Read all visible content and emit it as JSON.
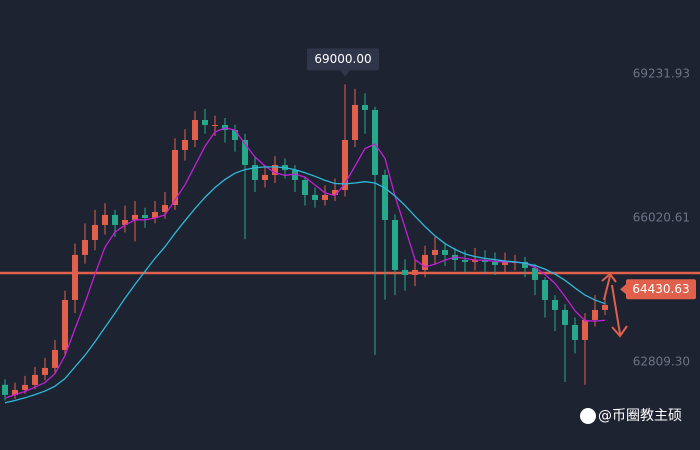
{
  "chart_data": {
    "type": "candlestick",
    "up_color": "#e0604c",
    "down_color": "#26a88a",
    "open": [
      62300,
      62074,
      62185,
      62297,
      62520,
      62676,
      63077,
      64192,
      65196,
      65530,
      65865,
      66088,
      65865,
      65976,
      66088,
      66020,
      66154,
      66310,
      67537,
      67760,
      68206,
      68095,
      68095,
      67983,
      67760,
      67202,
      66868,
      66980,
      67202,
      67091,
      66868,
      66534,
      66422,
      66534,
      66645,
      67760,
      68541,
      68429,
      66980,
      65976,
      64861,
      64750,
      64861,
      65196,
      65307,
      65196,
      65084,
      65040,
      65084,
      65040,
      64973,
      65040,
      65040,
      64906,
      64638,
      64192,
      63969,
      63635,
      63300,
      63746,
      63969
    ],
    "high": [
      62420,
      62350,
      62500,
      62700,
      62900,
      63300,
      64400,
      65450,
      65900,
      66200,
      66350,
      66200,
      66300,
      66400,
      66250,
      66400,
      66600,
      67800,
      68000,
      68400,
      68450,
      68300,
      68250,
      68100,
      67900,
      67400,
      67200,
      67400,
      67350,
      67200,
      66950,
      66700,
      66750,
      66900,
      69000,
      68900,
      68800,
      68500,
      67100,
      66100,
      65100,
      65100,
      65400,
      65600,
      65450,
      65350,
      65300,
      65350,
      65300,
      65250,
      65250,
      65200,
      65150,
      65000,
      64700,
      64300,
      64100,
      63800,
      63900,
      64300,
      64350
    ],
    "low": [
      61950,
      61980,
      62100,
      62200,
      62400,
      62550,
      62950,
      63900,
      65000,
      65300,
      65650,
      65600,
      65700,
      65500,
      65800,
      65900,
      66000,
      66200,
      67300,
      67600,
      67900,
      67850,
      67700,
      67500,
      65550,
      66600,
      66700,
      66800,
      66900,
      66600,
      66300,
      66250,
      66300,
      66400,
      66500,
      67600,
      67900,
      62966,
      64200,
      64300,
      64400,
      64500,
      64700,
      65000,
      64950,
      64850,
      64800,
      64850,
      64800,
      64750,
      64800,
      64850,
      64700,
      64300,
      63800,
      63500,
      62363,
      63000,
      62300,
      63600,
      63850
    ],
    "close": [
      62074,
      62185,
      62297,
      62520,
      62676,
      63077,
      64192,
      65196,
      65530,
      65865,
      66088,
      65865,
      65976,
      66088,
      66020,
      66154,
      66310,
      67537,
      67760,
      68206,
      68095,
      68095,
      67983,
      67760,
      67202,
      66868,
      66980,
      67202,
      67091,
      66868,
      66534,
      66422,
      66534,
      66645,
      67760,
      68541,
      68429,
      66980,
      65976,
      64861,
      64750,
      64861,
      65196,
      65307,
      65196,
      65084,
      65040,
      65084,
      65040,
      64973,
      65040,
      65040,
      64906,
      64638,
      64192,
      63969,
      63635,
      63300,
      63746,
      63969,
      64081
    ],
    "lines": [
      {
        "color": "#c21fd6",
        "values": [
          62000,
          62080,
          62150,
          62250,
          62350,
          62550,
          62950,
          63550,
          64130,
          64770,
          65370,
          65710,
          65860,
          65980,
          65980,
          66020,
          66090,
          66420,
          66760,
          67190,
          67620,
          67940,
          68030,
          67980,
          67670,
          67380,
          67180,
          67030,
          66970,
          67000,
          66930,
          66760,
          66580,
          66520,
          66790,
          67180,
          67570,
          67670,
          67350,
          66510,
          65810,
          65090,
          64930,
          64990,
          65080,
          65150,
          65120,
          65080,
          65080,
          65050,
          65040,
          65040,
          65010,
          64920,
          64760,
          64560,
          64270,
          63950,
          63730,
          63720,
          63740
        ]
      },
      {
        "color": "#2fb8d8",
        "values": [
          61900,
          61950,
          62010,
          62080,
          62160,
          62270,
          62440,
          62700,
          62960,
          63260,
          63580,
          63900,
          64230,
          64540,
          64830,
          65120,
          65380,
          65680,
          65960,
          66230,
          66480,
          66700,
          66880,
          67020,
          67100,
          67140,
          67160,
          67160,
          67140,
          67100,
          67030,
          66950,
          66860,
          66790,
          66780,
          66800,
          66830,
          66800,
          66690,
          66510,
          66300,
          66060,
          65830,
          65620,
          65450,
          65320,
          65220,
          65160,
          65120,
          65090,
          65060,
          65040,
          65010,
          64960,
          64880,
          64770,
          64630,
          64460,
          64300,
          64190,
          64110
        ]
      }
    ],
    "ylim": [
      60846,
      70882
    ],
    "yticks": [
      69231.93,
      66020.61,
      {
        "value": 62809.3,
        "label": "62809.30"
      }
    ],
    "last_price": 64430.63,
    "high_label": {
      "value": 69000,
      "label": "69000.00"
    },
    "watermark": "@币圈教主硕"
  }
}
